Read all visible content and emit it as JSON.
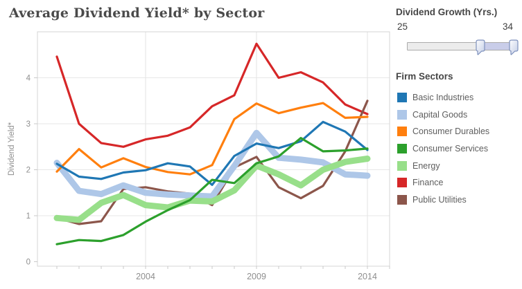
{
  "title": "Average Dividend Yield* by Sector",
  "slider": {
    "title": "Dividend Growth (Yrs.)",
    "min_label": "25",
    "max_label": "34"
  },
  "legend": {
    "title": "Firm Sectors"
  },
  "chart_data": {
    "type": "line",
    "title": "Average Dividend Yield* by Sector",
    "xlabel": "",
    "ylabel": "Dividend Yield*",
    "x": [
      2000,
      2001,
      2002,
      2003,
      2004,
      2005,
      2006,
      2007,
      2008,
      2009,
      2010,
      2011,
      2012,
      2013,
      2014
    ],
    "xticks": [
      "2004",
      "2009",
      "2014"
    ],
    "yticks": [
      "0",
      "1",
      "2",
      "3",
      "4"
    ],
    "xlim": [
      1999.1,
      2015
    ],
    "ylim": [
      -0.1,
      5.0
    ],
    "grid": true,
    "legend_position": "right",
    "series": [
      {
        "name": "Basic Industries",
        "slug": "basic-industries",
        "color": "#1f77b4",
        "line_width": 3.2,
        "values": [
          2.13,
          1.85,
          1.8,
          1.94,
          1.99,
          2.14,
          2.07,
          1.67,
          2.3,
          2.57,
          2.47,
          2.62,
          3.04,
          2.83,
          2.43
        ]
      },
      {
        "name": "Capital Goods",
        "slug": "capital-goods",
        "color": "#aec7e8",
        "line_width": 9,
        "values": [
          2.15,
          1.54,
          1.47,
          1.66,
          1.5,
          1.46,
          1.44,
          1.42,
          2.08,
          2.8,
          2.26,
          2.22,
          2.16,
          1.9,
          1.87
        ]
      },
      {
        "name": "Consumer Durables",
        "slug": "consumer-durables",
        "color": "#ff7f0e",
        "line_width": 3.2,
        "values": [
          1.96,
          2.45,
          2.05,
          2.25,
          2.06,
          1.95,
          1.9,
          2.1,
          3.1,
          3.44,
          3.23,
          3.35,
          3.45,
          3.13,
          3.15
        ]
      },
      {
        "name": "Consumer Services",
        "slug": "consumer-services",
        "color": "#2ca02c",
        "line_width": 3.2,
        "values": [
          0.38,
          0.47,
          0.45,
          0.58,
          0.87,
          1.12,
          1.34,
          1.78,
          1.71,
          2.14,
          2.29,
          2.69,
          2.4,
          2.42,
          2.46
        ]
      },
      {
        "name": "Energy",
        "slug": "energy",
        "color": "#98df8a",
        "line_width": 9,
        "values": [
          0.95,
          0.91,
          1.28,
          1.45,
          1.23,
          1.18,
          1.33,
          1.31,
          1.55,
          2.09,
          1.9,
          1.66,
          2.0,
          2.17,
          2.24
        ]
      },
      {
        "name": "Finance",
        "slug": "finance",
        "color": "#d62728",
        "line_width": 3.2,
        "values": [
          4.46,
          3.0,
          2.58,
          2.5,
          2.66,
          2.74,
          2.92,
          3.38,
          3.62,
          4.74,
          4.0,
          4.12,
          3.9,
          3.42,
          3.21
        ]
      },
      {
        "name": "Public Utilities",
        "slug": "public-utilities",
        "color": "#8c564b",
        "line_width": 3.2,
        "values": [
          0.95,
          0.82,
          0.88,
          1.58,
          1.62,
          1.53,
          1.48,
          1.23,
          2.05,
          2.28,
          1.62,
          1.38,
          1.65,
          2.4,
          3.5
        ]
      }
    ],
    "draw_order": [
      "finance",
      "public-utilities",
      "capital-goods",
      "energy",
      "consumer-durables",
      "basic-industries",
      "consumer-services"
    ]
  }
}
